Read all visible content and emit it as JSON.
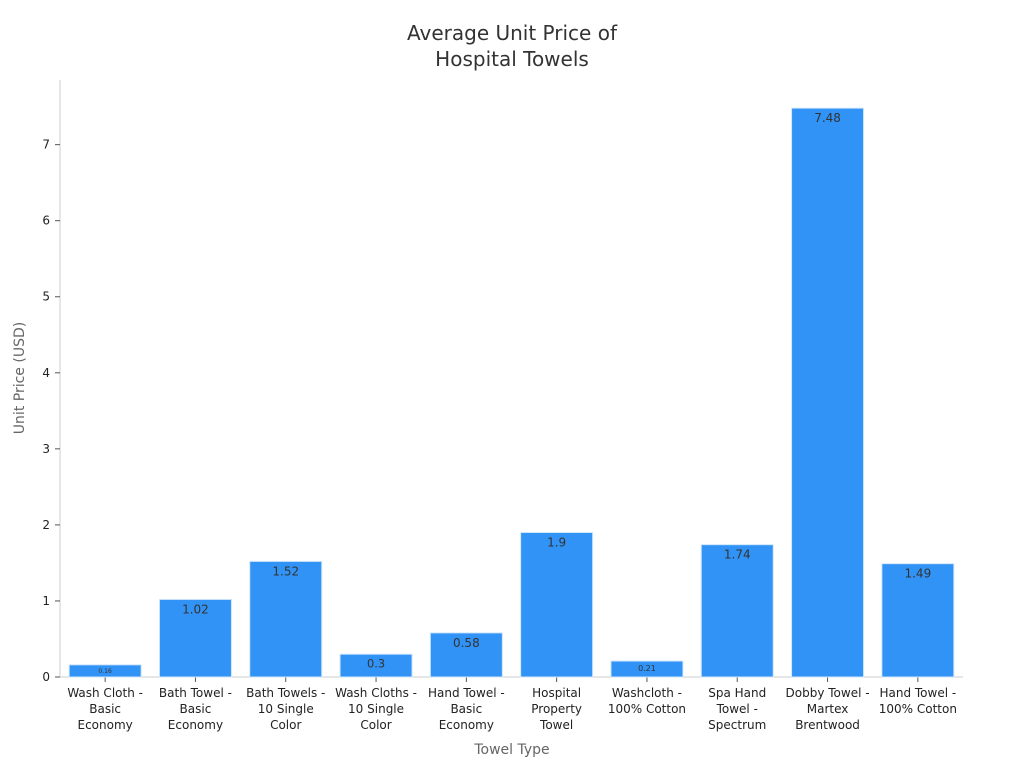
{
  "chart_data": {
    "type": "bar",
    "title": "Average Unit Price of Hospital Towels",
    "x_label": "Towel Type",
    "y_label": "Unit Price (USD)",
    "categories": [
      "Wash Cloth - Basic Economy",
      "Bath Towel - Basic Economy",
      "Bath Towels - 10 Single Color",
      "Wash Cloths - 10 Single Color",
      "Hand Towel - Basic Economy",
      "Hospital Property Towel",
      "Washcloth - 100% Cotton",
      "Spa Hand Towel - Spectrum",
      "Dobby Towel - Martex Brentwood",
      "Hand Towel - 100% Cotton"
    ],
    "values": [
      0.16,
      1.02,
      1.52,
      0.3,
      0.58,
      1.9,
      0.21,
      1.74,
      7.48,
      1.49
    ],
    "color": "#3193f5",
    "ylim": [
      0,
      7.85
    ],
    "yticks": [
      0,
      1,
      2,
      3,
      4,
      5,
      6,
      7
    ],
    "grid": false
  }
}
